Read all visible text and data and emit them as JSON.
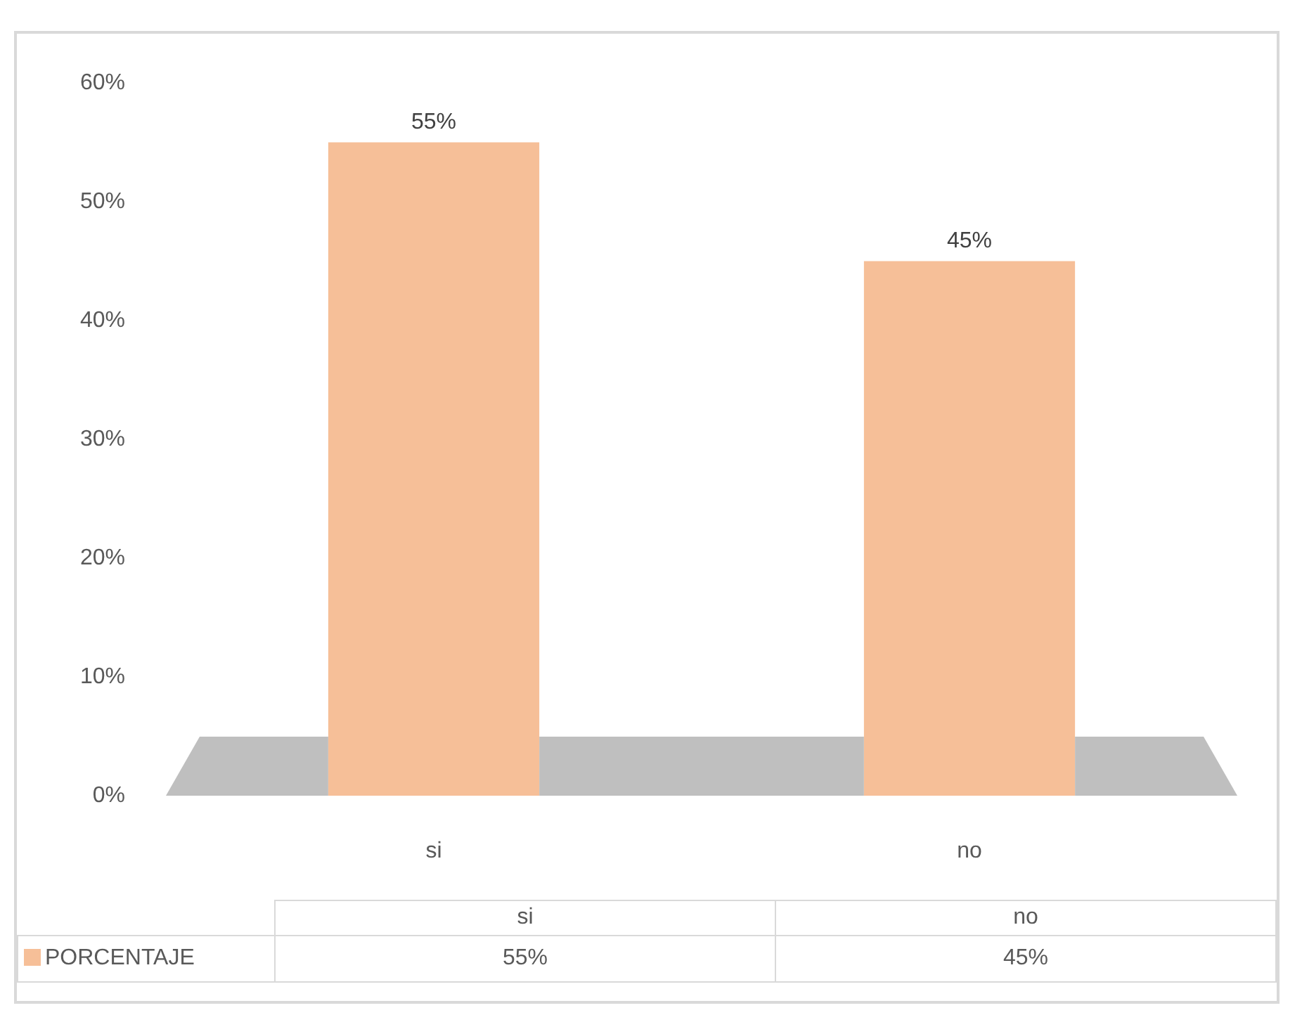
{
  "chart_data": {
    "type": "bar",
    "categories": [
      "si",
      "no"
    ],
    "series": [
      {
        "name": "PORCENTAJE",
        "color": "#f6bf98",
        "values": [
          55,
          45
        ],
        "value_labels": [
          "55%",
          "45%"
        ]
      }
    ],
    "ylim": [
      0,
      60
    ],
    "yticks": [
      {
        "value": 0,
        "label": "0%"
      },
      {
        "value": 10,
        "label": "10%"
      },
      {
        "value": 20,
        "label": "20%"
      },
      {
        "value": 30,
        "label": "30%"
      },
      {
        "value": 40,
        "label": "40%"
      },
      {
        "value": 50,
        "label": "50%"
      },
      {
        "value": 60,
        "label": "60%"
      }
    ],
    "legend": "bottom"
  }
}
